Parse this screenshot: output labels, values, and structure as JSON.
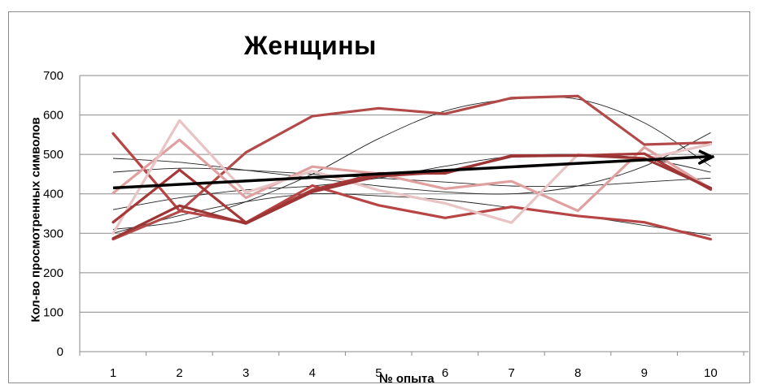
{
  "chart_data": {
    "type": "line",
    "title": "Женщины",
    "xlabel": "№ опыта",
    "ylabel": "Кол-во просмотренных символов",
    "categories": [
      "1",
      "2",
      "3",
      "4",
      "5",
      "6",
      "7",
      "8",
      "9",
      "10"
    ],
    "yticks": [
      "0",
      "100",
      "200",
      "300",
      "400",
      "500",
      "600",
      "700"
    ],
    "ylim": [
      0,
      700
    ],
    "grid": true,
    "series": [
      {
        "color": "#b34a4a",
        "values": [
          285,
          355,
          505,
          597,
          617,
          603,
          643,
          648,
          525,
          530
        ]
      },
      {
        "color": "#b84545",
        "values": [
          553,
          357,
          327,
          421,
          371,
          339,
          367,
          344,
          328,
          285
        ]
      },
      {
        "color": "#e0a0a0",
        "values": [
          402,
          537,
          390,
          469,
          451,
          413,
          432,
          357,
          518,
          413
        ]
      },
      {
        "color": "#e8c4c4",
        "values": [
          300,
          586,
          403,
          458,
          409,
          376,
          327,
          500,
          488,
          526
        ]
      },
      {
        "color": "#a83838",
        "values": [
          328,
          461,
          327,
          410,
          452,
          452,
          497,
          497,
          502,
          411
        ]
      },
      {
        "color": "#9c3535",
        "values": [
          287,
          370,
          325,
          405,
          445,
          455,
          495,
          498,
          490,
          415
        ]
      }
    ],
    "trendlines": [
      {
        "values": [
          310,
          330,
          380,
          450,
          540,
          610,
          640,
          640,
          580,
          470
        ]
      },
      {
        "values": [
          490,
          480,
          460,
          440,
          420,
          405,
          400,
          420,
          470,
          555
        ]
      },
      {
        "values": [
          360,
          390,
          410,
          420,
          440,
          470,
          495,
          500,
          490,
          455
        ]
      },
      {
        "values": [
          300,
          345,
          380,
          400,
          395,
          385,
          365,
          345,
          320,
          295
        ]
      },
      {
        "values": [
          455,
          465,
          460,
          450,
          440,
          430,
          420,
          420,
          430,
          440
        ]
      }
    ],
    "arrow": {
      "from": [
        1,
        415
      ],
      "to": [
        10,
        495
      ],
      "color": "#000000"
    }
  }
}
